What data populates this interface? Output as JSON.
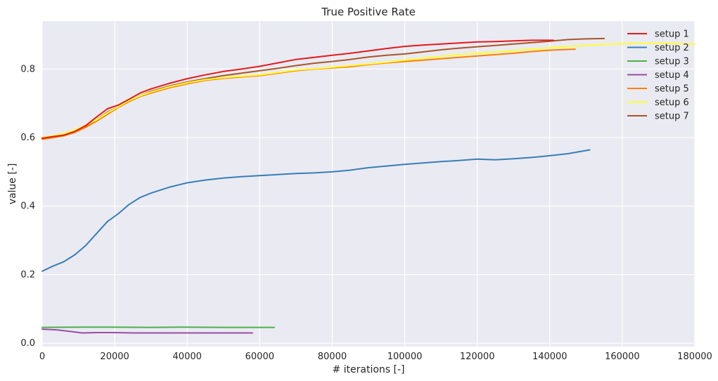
{
  "chart_data": {
    "type": "line",
    "title": "True Positive Rate",
    "xlabel": "# iterations [-]",
    "ylabel": "value [-]",
    "xlim": [
      0,
      180000
    ],
    "ylim": [
      -0.01,
      0.94
    ],
    "xticks": [
      0,
      20000,
      40000,
      60000,
      80000,
      100000,
      120000,
      140000,
      160000,
      180000
    ],
    "yticks": [
      0.0,
      0.2,
      0.4,
      0.6,
      0.8
    ],
    "grid": true,
    "legend_position": "top-right",
    "series": [
      {
        "name": "setup 1",
        "color": "#e41a1c",
        "x": [
          0,
          3000,
          6000,
          9000,
          12000,
          15000,
          18000,
          21000,
          24000,
          27000,
          30000,
          35000,
          40000,
          45000,
          50000,
          55000,
          60000,
          65000,
          70000,
          75000,
          80000,
          85000,
          90000,
          95000,
          100000,
          105000,
          110000,
          115000,
          120000,
          125000,
          130000,
          135000,
          141000
        ],
        "y": [
          0.598,
          0.603,
          0.607,
          0.618,
          0.635,
          0.66,
          0.684,
          0.695,
          0.712,
          0.73,
          0.742,
          0.758,
          0.772,
          0.783,
          0.793,
          0.8,
          0.808,
          0.818,
          0.828,
          0.834,
          0.84,
          0.846,
          0.853,
          0.86,
          0.866,
          0.87,
          0.873,
          0.876,
          0.879,
          0.88,
          0.882,
          0.884,
          0.884
        ]
      },
      {
        "name": "setup 2",
        "color": "#377eb8",
        "x": [
          0,
          3000,
          6000,
          9000,
          12000,
          15000,
          18000,
          21000,
          24000,
          27000,
          30000,
          35000,
          40000,
          45000,
          50000,
          55000,
          60000,
          65000,
          70000,
          75000,
          80000,
          85000,
          90000,
          95000,
          100000,
          105000,
          110000,
          115000,
          120000,
          125000,
          130000,
          135000,
          140000,
          145000,
          151000
        ],
        "y": [
          0.21,
          0.225,
          0.238,
          0.258,
          0.285,
          0.32,
          0.355,
          0.378,
          0.405,
          0.425,
          0.438,
          0.455,
          0.468,
          0.476,
          0.482,
          0.486,
          0.489,
          0.492,
          0.495,
          0.497,
          0.5,
          0.505,
          0.512,
          0.517,
          0.522,
          0.526,
          0.53,
          0.533,
          0.537,
          0.535,
          0.538,
          0.542,
          0.547,
          0.553,
          0.564
        ]
      },
      {
        "name": "setup 3",
        "color": "#4daf4a",
        "x": [
          0,
          10000,
          20000,
          30000,
          40000,
          50000,
          60000,
          64000
        ],
        "y": [
          0.046,
          0.047,
          0.047,
          0.046,
          0.047,
          0.046,
          0.046,
          0.046
        ]
      },
      {
        "name": "setup 4",
        "color": "#984ea3",
        "x": [
          0,
          4000,
          8000,
          11000,
          15000,
          20000,
          25000,
          30000,
          40000,
          50000,
          58000
        ],
        "y": [
          0.041,
          0.039,
          0.034,
          0.03,
          0.031,
          0.031,
          0.03,
          0.03,
          0.03,
          0.03,
          0.03
        ]
      },
      {
        "name": "setup 5",
        "color": "#ff7f00",
        "x": [
          0,
          3000,
          6000,
          9000,
          12000,
          15000,
          18000,
          21000,
          24000,
          27000,
          30000,
          35000,
          40000,
          45000,
          50000,
          55000,
          60000,
          65000,
          70000,
          75000,
          80000,
          85000,
          90000,
          95000,
          100000,
          105000,
          110000,
          115000,
          120000,
          125000,
          130000,
          135000,
          140000,
          147000
        ],
        "y": [
          0.595,
          0.6,
          0.605,
          0.615,
          0.63,
          0.648,
          0.668,
          0.688,
          0.705,
          0.72,
          0.73,
          0.745,
          0.757,
          0.767,
          0.773,
          0.777,
          0.781,
          0.788,
          0.795,
          0.8,
          0.803,
          0.807,
          0.813,
          0.818,
          0.822,
          0.826,
          0.83,
          0.834,
          0.838,
          0.842,
          0.846,
          0.851,
          0.855,
          0.858
        ]
      },
      {
        "name": "setup 6",
        "color": "#ffff33",
        "x": [
          0,
          3000,
          6000,
          9000,
          12000,
          15000,
          18000,
          21000,
          24000,
          27000,
          30000,
          35000,
          40000,
          45000,
          50000,
          55000,
          60000,
          65000,
          70000,
          75000,
          80000,
          85000,
          90000,
          95000,
          100000,
          105000,
          110000,
          115000,
          120000,
          125000,
          130000,
          135000,
          140000,
          145000,
          150000,
          155000,
          160000,
          165000,
          170000,
          175000,
          180000
        ],
        "y": [
          0.6,
          0.605,
          0.612,
          0.622,
          0.636,
          0.652,
          0.672,
          0.69,
          0.708,
          0.722,
          0.733,
          0.748,
          0.76,
          0.769,
          0.775,
          0.779,
          0.783,
          0.79,
          0.797,
          0.801,
          0.805,
          0.81,
          0.815,
          0.82,
          0.826,
          0.832,
          0.837,
          0.842,
          0.846,
          0.85,
          0.854,
          0.858,
          0.862,
          0.866,
          0.869,
          0.872,
          0.874,
          0.875,
          0.875,
          0.874,
          0.873
        ]
      },
      {
        "name": "setup 7",
        "color": "#a65628",
        "x": [
          0,
          3000,
          6000,
          9000,
          12000,
          15000,
          18000,
          21000,
          24000,
          27000,
          30000,
          35000,
          40000,
          45000,
          50000,
          55000,
          60000,
          65000,
          70000,
          75000,
          80000,
          85000,
          90000,
          95000,
          100000,
          105000,
          110000,
          115000,
          120000,
          125000,
          130000,
          135000,
          140000,
          145000,
          150000,
          155000
        ],
        "y": [
          0.6,
          0.603,
          0.607,
          0.616,
          0.632,
          0.652,
          0.674,
          0.69,
          0.707,
          0.722,
          0.735,
          0.75,
          0.762,
          0.772,
          0.781,
          0.788,
          0.795,
          0.802,
          0.81,
          0.817,
          0.822,
          0.828,
          0.835,
          0.84,
          0.844,
          0.85,
          0.856,
          0.861,
          0.865,
          0.869,
          0.873,
          0.877,
          0.881,
          0.886,
          0.888,
          0.889
        ]
      }
    ]
  }
}
